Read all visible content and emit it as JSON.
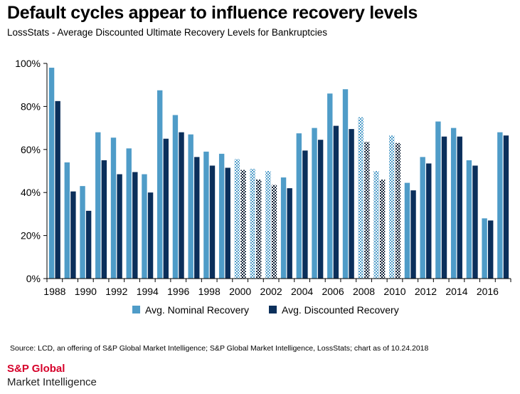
{
  "header": {
    "title": "Default cycles appear to influence recovery levels",
    "subtitle": "LossStats - Average Discounted Ultimate Recovery Levels for Bankruptcies"
  },
  "footer": {
    "source": "Source: LCD, an offering of S&P Global Market Intelligence; S&P Global Market Intelligence, LossStats; chart as of 10.24.2018",
    "logo_line1": "S&P Global",
    "logo_line2": "Market Intelligence"
  },
  "colors": {
    "nominal": "#4f9cc8",
    "discounted": "#0b2f5b",
    "logo_red": "#d6002a"
  },
  "chart_data": {
    "type": "bar",
    "categories": [
      "1988",
      "1989",
      "1990",
      "1991",
      "1992",
      "1993",
      "1994",
      "1995",
      "1996",
      "1997",
      "1998",
      "1999",
      "2000",
      "2001",
      "2002",
      "2003",
      "2004",
      "2005",
      "2006",
      "2007",
      "2008",
      "2009",
      "2010",
      "2011",
      "2012",
      "2013",
      "2014",
      "2015",
      "2016",
      "2017"
    ],
    "x_tick_labels": [
      "1988",
      "1990",
      "1992",
      "1994",
      "1996",
      "1998",
      "2000",
      "2002",
      "2004",
      "2006",
      "2008",
      "2010",
      "2012",
      "2014",
      "2016"
    ],
    "y_tick_labels": [
      "0%",
      "20%",
      "40%",
      "60%",
      "80%",
      "100%"
    ],
    "ylim": [
      0,
      100
    ],
    "series": [
      {
        "name": "Avg. Nominal Recovery",
        "color": "#4f9cc8",
        "values": [
          98,
          54,
          43,
          68,
          65.5,
          60.5,
          48.5,
          87.5,
          76,
          67,
          59,
          58,
          55.5,
          51,
          50,
          47,
          67.5,
          70,
          86,
          88,
          75,
          50,
          66.5,
          44.5,
          56.5,
          73,
          70,
          55,
          28,
          68
        ]
      },
      {
        "name": "Avg. Discounted Recovery",
        "color": "#0b2f5b",
        "values": [
          82.5,
          40.5,
          31.5,
          55,
          48.5,
          49.5,
          40,
          65,
          68,
          56.5,
          52.5,
          51.5,
          50.5,
          46,
          43.5,
          42,
          59.5,
          64.5,
          71,
          69.5,
          63.5,
          46,
          63,
          41,
          53.5,
          66,
          66,
          52.5,
          27,
          66.5
        ]
      }
    ],
    "patterned_years": [
      "2000",
      "2001",
      "2002",
      "2008",
      "2009",
      "2010"
    ],
    "legend_position": "bottom",
    "grid": false
  }
}
